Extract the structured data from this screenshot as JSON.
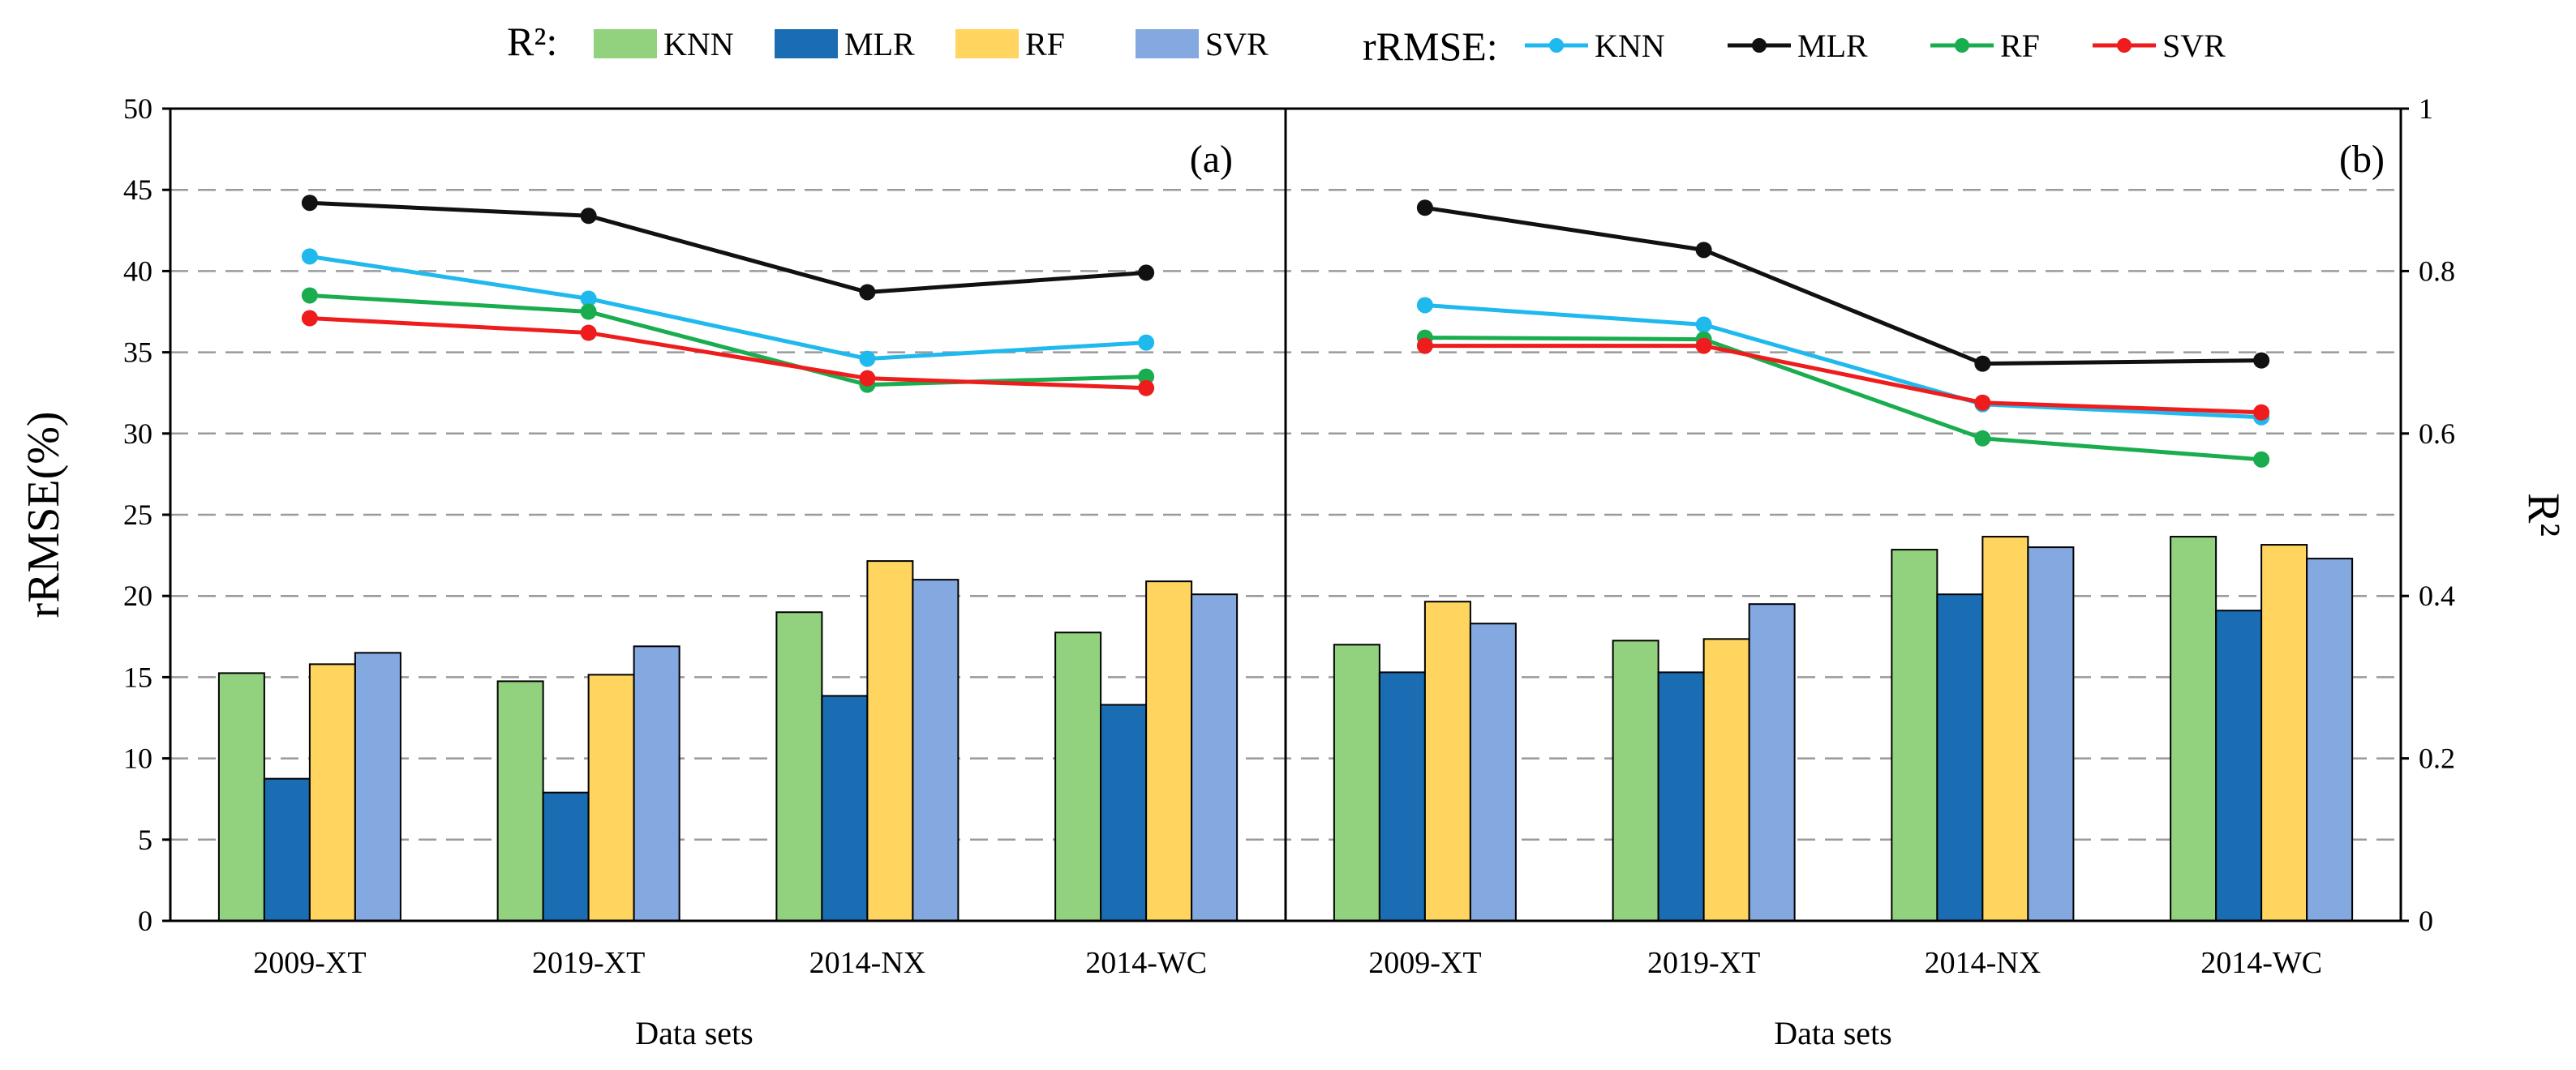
{
  "colors": {
    "bar_KNN": "#92d27e",
    "bar_MLR": "#1b6db3",
    "bar_RF": "#ffd560",
    "bar_SVR": "#84a8e0",
    "line_KNN": "#1fb9ee",
    "line_MLR": "#111111",
    "line_RF": "#1aad4f",
    "line_SVR": "#ee1c1c"
  },
  "chart_data": {
    "type": "bar+line",
    "legend": {
      "r2_prefix": "R²:",
      "rrmse_prefix": "rRMSE:",
      "bar_series": [
        "KNN",
        "MLR",
        "RF",
        "SVR"
      ],
      "line_series": [
        "KNN",
        "MLR",
        "RF",
        "SVR"
      ]
    },
    "y_left": {
      "label": "rRMSE(%)",
      "range": [
        0,
        50
      ],
      "ticks": [
        "0",
        "5",
        "10",
        "15",
        "20",
        "25",
        "30",
        "35",
        "40",
        "45",
        "50"
      ]
    },
    "y_right": {
      "label": "R²",
      "range": [
        0,
        1
      ],
      "ticks": [
        "0",
        "0.2",
        "0.4",
        "0.6",
        "0.8",
        "1"
      ]
    },
    "categories": [
      "2009-XT",
      "2019-XT",
      "2014-NX",
      "2014-WC"
    ],
    "xlabel": "Data sets",
    "panels": [
      {
        "label": "(a)",
        "r2": {
          "KNN": [
            0.305,
            0.295,
            0.38,
            0.355
          ],
          "MLR": [
            0.175,
            0.158,
            0.277,
            0.266
          ],
          "RF": [
            0.316,
            0.303,
            0.443,
            0.418
          ],
          "SVR": [
            0.33,
            0.338,
            0.42,
            0.402
          ]
        },
        "rrmse": {
          "KNN": [
            40.9,
            38.3,
            34.6,
            35.6
          ],
          "MLR": [
            44.2,
            43.4,
            38.7,
            39.9
          ],
          "RF": [
            38.5,
            37.5,
            33.0,
            33.5
          ],
          "SVR": [
            37.1,
            36.2,
            33.4,
            32.8
          ]
        }
      },
      {
        "label": "(b)",
        "r2": {
          "KNN": [
            0.34,
            0.345,
            0.457,
            0.473
          ],
          "MLR": [
            0.306,
            0.306,
            0.402,
            0.382
          ],
          "RF": [
            0.393,
            0.347,
            0.473,
            0.463
          ],
          "SVR": [
            0.366,
            0.39,
            0.46,
            0.446
          ]
        },
        "rrmse": {
          "KNN": [
            37.9,
            36.7,
            31.8,
            31.0
          ],
          "MLR": [
            43.9,
            41.3,
            34.3,
            34.5
          ],
          "RF": [
            35.9,
            35.8,
            29.7,
            28.4
          ],
          "SVR": [
            35.4,
            35.4,
            31.9,
            31.3
          ]
        }
      }
    ]
  }
}
